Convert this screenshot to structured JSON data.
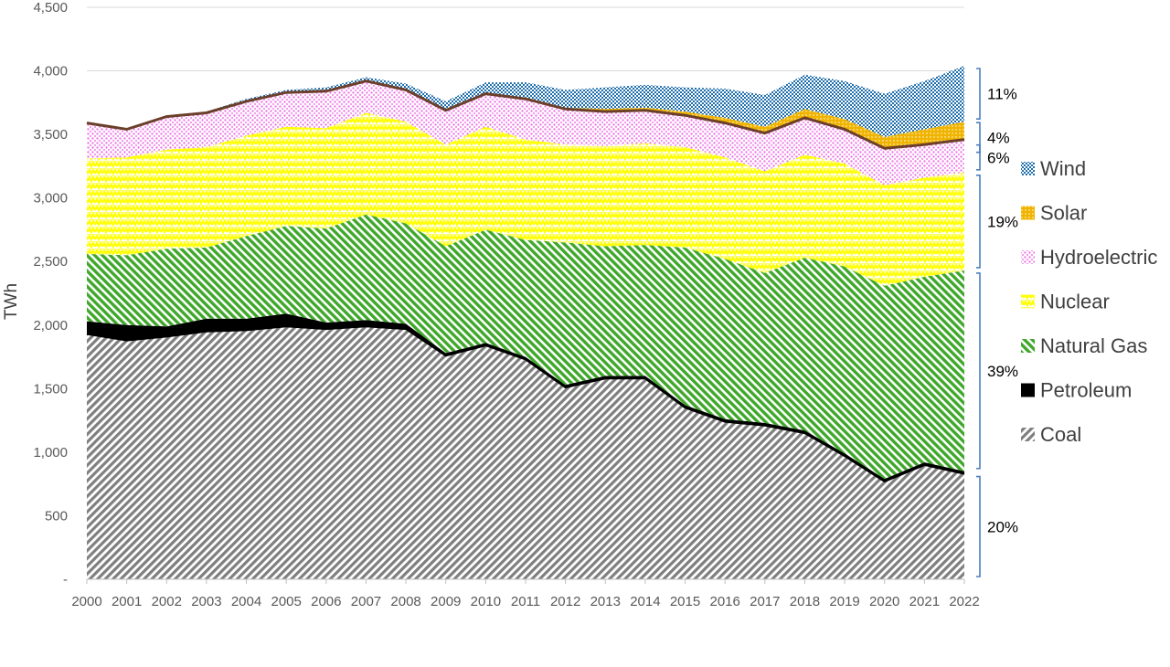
{
  "chart_data": {
    "type": "area",
    "stacked": true,
    "ylabel": "TWh",
    "xlabel": "",
    "title": "",
    "ylim": [
      0,
      4500
    ],
    "ytick_labels": [
      "-",
      "500",
      "1,000",
      "1,500",
      "2,000",
      "2,500",
      "3,000",
      "3,500",
      "4,000",
      "4,500"
    ],
    "ytick_values": [
      0,
      500,
      1000,
      1500,
      2000,
      2500,
      3000,
      3500,
      4000,
      4500
    ],
    "grid": "horizontal",
    "legend_position": "right",
    "x": [
      "2000",
      "2001",
      "2002",
      "2003",
      "2004",
      "2005",
      "2006",
      "2007",
      "2008",
      "2009",
      "2010",
      "2011",
      "2012",
      "2013",
      "2014",
      "2015",
      "2016",
      "2017",
      "2018",
      "2019",
      "2020",
      "2021",
      "2022"
    ],
    "series": [
      {
        "name": "Coal",
        "color": "#7f7f7f",
        "pattern": "diag-stripes",
        "values": [
          1930,
          1880,
          1910,
          1950,
          1960,
          1990,
          1970,
          1990,
          1970,
          1760,
          1840,
          1730,
          1510,
          1580,
          1580,
          1350,
          1240,
          1210,
          1150,
          970,
          770,
          900,
          830
        ]
      },
      {
        "name": "Petroleum",
        "color": "#000000",
        "pattern": "solid",
        "values": [
          100,
          120,
          80,
          100,
          90,
          100,
          50,
          50,
          40,
          20,
          20,
          20,
          20,
          20,
          20,
          20,
          20,
          20,
          20,
          20,
          20,
          20,
          20
        ]
      },
      {
        "name": "Natural Gas",
        "color": "#3fa82a",
        "pattern": "diag-stripes-reverse",
        "values": [
          530,
          550,
          610,
          560,
          650,
          690,
          740,
          830,
          790,
          840,
          890,
          920,
          1120,
          1020,
          1030,
          1240,
          1260,
          1180,
          1360,
          1470,
          1520,
          1460,
          1580
        ]
      },
      {
        "name": "Nuclear",
        "color": "#ffff00",
        "pattern": "zigzag",
        "values": [
          750,
          770,
          780,
          790,
          790,
          780,
          790,
          800,
          800,
          800,
          810,
          790,
          770,
          790,
          800,
          790,
          800,
          800,
          810,
          810,
          790,
          780,
          770
        ]
      },
      {
        "name": "Hydroelectric",
        "color": "#f07ae8",
        "pattern": "dots",
        "values": [
          280,
          220,
          260,
          270,
          270,
          270,
          290,
          250,
          250,
          270,
          260,
          320,
          280,
          270,
          260,
          250,
          270,
          300,
          290,
          270,
          290,
          260,
          260
        ]
      },
      {
        "name": "Solar",
        "color": "#f0b400",
        "pattern": "dotted-fill",
        "values": [
          0,
          0,
          0,
          0,
          0,
          0,
          0,
          0,
          0,
          0,
          0,
          10,
          10,
          20,
          20,
          30,
          40,
          50,
          70,
          80,
          90,
          120,
          140
        ]
      },
      {
        "name": "Wind",
        "color": "#1f6fae",
        "pattern": "checker",
        "values": [
          10,
          10,
          10,
          10,
          20,
          20,
          30,
          30,
          50,
          70,
          90,
          120,
          140,
          170,
          180,
          190,
          230,
          250,
          270,
          300,
          340,
          380,
          440
        ]
      }
    ],
    "annotations": [
      {
        "label": "11%",
        "series": "Wind"
      },
      {
        "label": "4%",
        "series": "Solar"
      },
      {
        "label": "6%",
        "series": "Hydroelectric"
      },
      {
        "label": "19%",
        "series": "Nuclear"
      },
      {
        "label": "39%",
        "series": "Natural Gas"
      },
      {
        "label": "20%",
        "series": "Coal"
      }
    ],
    "legend": [
      "Wind",
      "Solar",
      "Hydroelectric",
      "Nuclear",
      "Natural Gas",
      "Petroleum",
      "Coal"
    ]
  }
}
